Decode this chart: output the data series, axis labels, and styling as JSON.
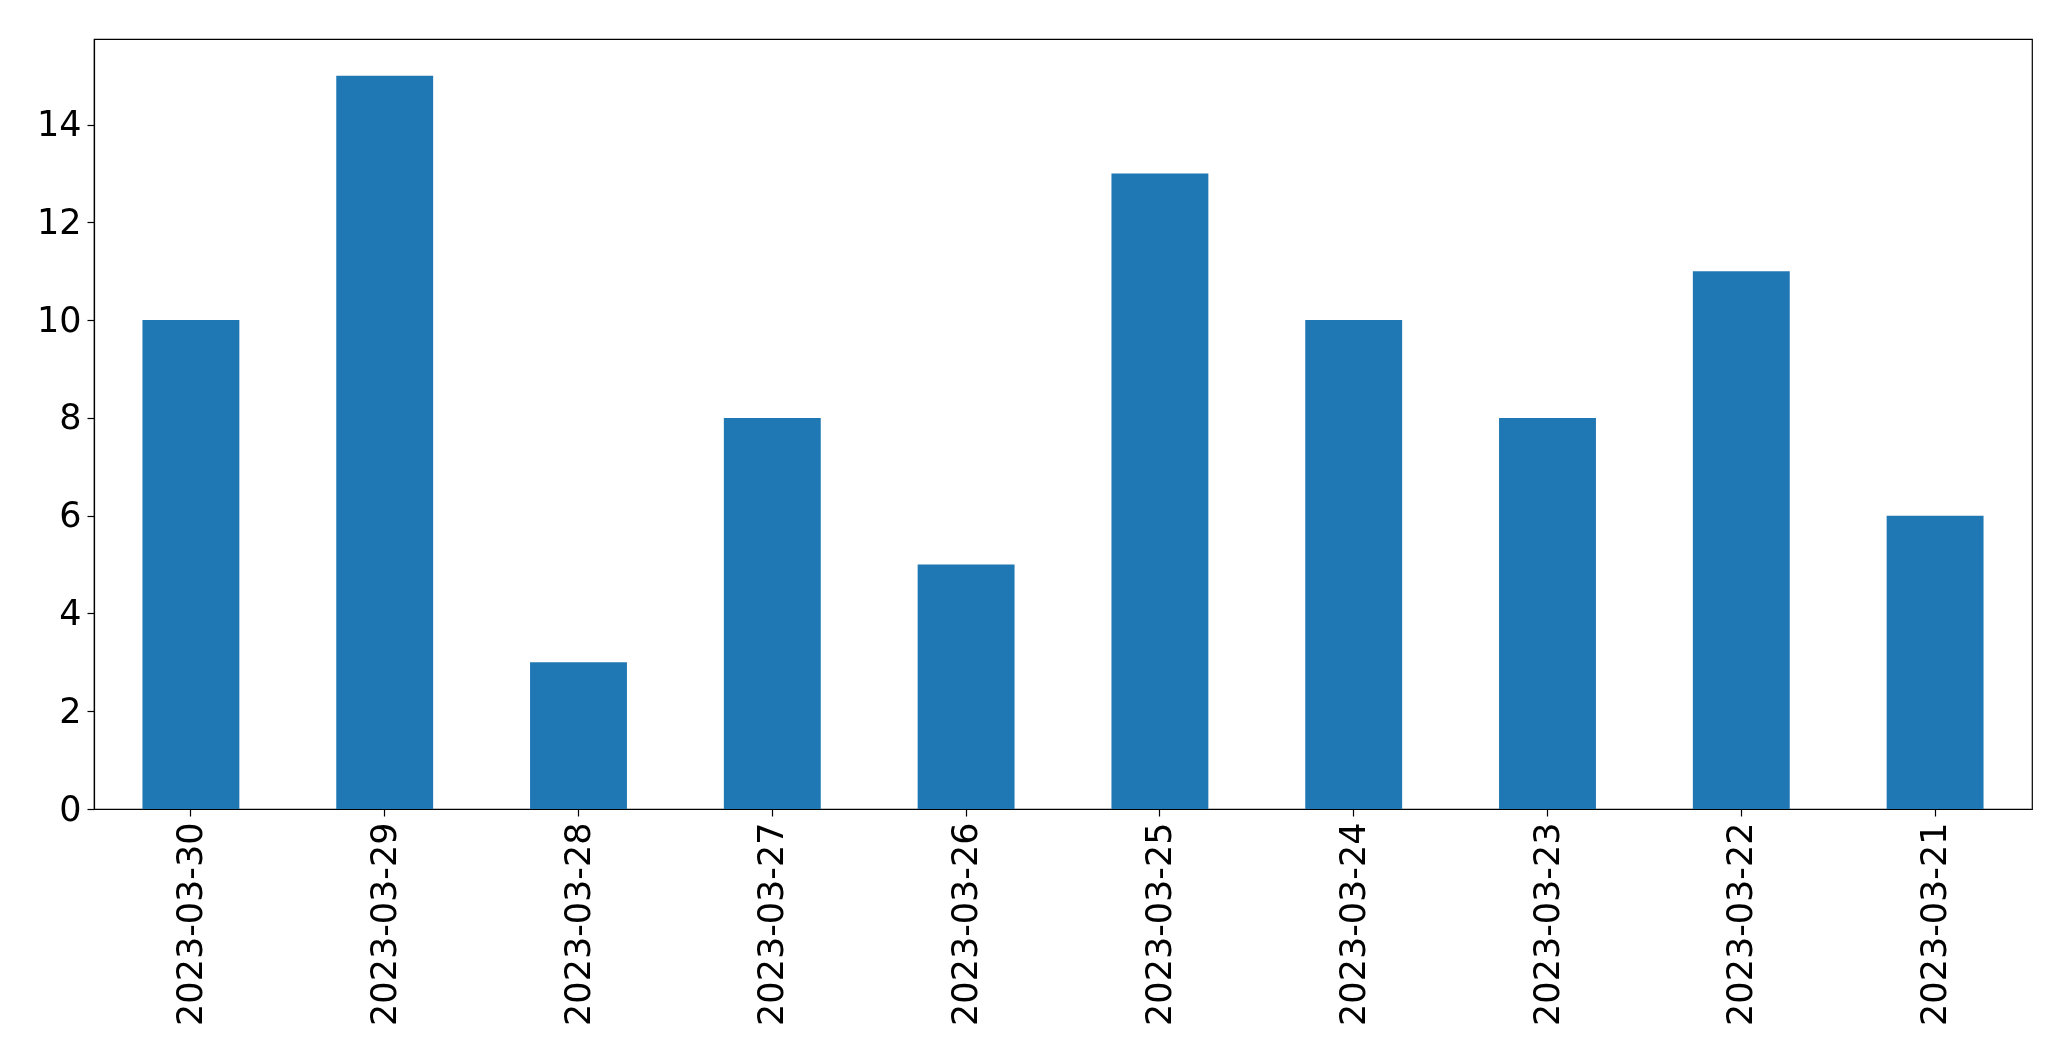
{
  "chart_data": {
    "type": "bar",
    "categories": [
      "2023-03-30",
      "2023-03-29",
      "2023-03-28",
      "2023-03-27",
      "2023-03-26",
      "2023-03-25",
      "2023-03-24",
      "2023-03-23",
      "2023-03-22",
      "2023-03-21"
    ],
    "values": [
      10,
      15,
      3,
      8,
      5,
      13,
      10,
      8,
      11,
      6
    ],
    "color": "#1f77b4",
    "ylim": [
      0,
      15.75
    ],
    "yticks": [
      0,
      2,
      4,
      6,
      8,
      10,
      12,
      14
    ]
  }
}
